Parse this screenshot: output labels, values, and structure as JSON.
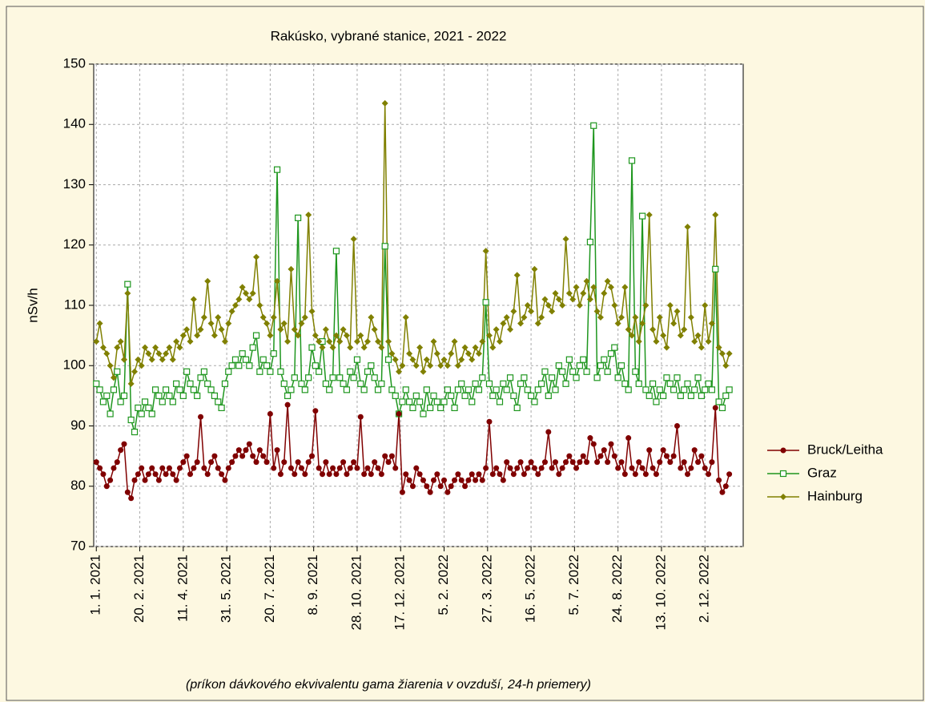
{
  "chart_data": {
    "type": "line",
    "title": "Rakúsko, vybrané stanice, 2021 - 2022",
    "y_label": "nSv/h",
    "note": "(príkon dávkového ekvivalentu gama žiarenia v ovzduší, 24-h priemery)",
    "grid": true,
    "legend": "right",
    "xlim": [
      -3,
      744
    ],
    "xticks": [
      {
        "value": 0,
        "label": "1. 1. 2021"
      },
      {
        "value": 50,
        "label": "20. 2. 2021"
      },
      {
        "value": 100,
        "label": "11. 4. 2021"
      },
      {
        "value": 150,
        "label": "31. 5. 2021"
      },
      {
        "value": 200,
        "label": "20. 7. 2021"
      },
      {
        "value": 250,
        "label": "8. 9. 2021"
      },
      {
        "value": 300,
        "label": "28. 10. 2021"
      },
      {
        "value": 350,
        "label": "17. 12. 2021"
      },
      {
        "value": 400,
        "label": "5. 2. 2022"
      },
      {
        "value": 450,
        "label": "27. 3. 2022"
      },
      {
        "value": 500,
        "label": "16. 5. 2022"
      },
      {
        "value": 550,
        "label": "5. 7. 2022"
      },
      {
        "value": 600,
        "label": "24. 8. 2022"
      },
      {
        "value": 650,
        "label": "13. 10. 2022"
      },
      {
        "value": 700,
        "label": "2. 12. 2022"
      }
    ],
    "ylim": [
      70,
      150
    ],
    "yticks": [
      70,
      80,
      90,
      100,
      110,
      120,
      130,
      140,
      150
    ],
    "x": [
      0,
      4,
      8,
      12,
      16,
      20,
      24,
      28,
      32,
      36,
      40,
      44,
      48,
      52,
      56,
      60,
      64,
      68,
      72,
      76,
      80,
      84,
      88,
      92,
      96,
      100,
      104,
      108,
      112,
      116,
      120,
      124,
      128,
      132,
      136,
      140,
      144,
      148,
      152,
      156,
      160,
      164,
      168,
      172,
      176,
      180,
      184,
      188,
      192,
      196,
      200,
      204,
      208,
      212,
      216,
      220,
      224,
      228,
      232,
      236,
      240,
      244,
      248,
      252,
      256,
      260,
      264,
      268,
      272,
      276,
      280,
      284,
      288,
      292,
      296,
      300,
      304,
      308,
      312,
      316,
      320,
      324,
      328,
      332,
      336,
      340,
      344,
      348,
      352,
      356,
      360,
      364,
      368,
      372,
      376,
      380,
      384,
      388,
      392,
      396,
      400,
      404,
      408,
      412,
      416,
      420,
      424,
      428,
      432,
      436,
      440,
      444,
      448,
      452,
      456,
      460,
      464,
      468,
      472,
      476,
      480,
      484,
      488,
      492,
      496,
      500,
      504,
      508,
      512,
      516,
      520,
      524,
      528,
      532,
      536,
      540,
      544,
      548,
      552,
      556,
      560,
      564,
      568,
      572,
      576,
      580,
      584,
      588,
      592,
      596,
      600,
      604,
      608,
      612,
      616,
      620,
      624,
      628,
      632,
      636,
      640,
      644,
      648,
      652,
      656,
      660,
      664,
      668,
      672,
      676,
      680,
      684,
      688,
      692,
      696,
      700,
      704,
      708,
      712,
      716,
      720,
      724,
      728
    ],
    "series": [
      {
        "name": "Bruck/Leitha",
        "color": "#800000",
        "marker": "circle",
        "values": [
          84,
          83,
          82,
          80,
          81,
          83,
          84,
          86,
          87,
          79,
          78,
          81,
          82,
          83,
          81,
          82,
          83,
          82,
          81,
          83,
          82,
          83,
          82,
          81,
          83,
          84,
          85,
          82,
          83,
          84,
          91.5,
          83,
          82,
          84,
          85,
          83,
          82,
          81,
          83,
          84,
          85,
          86,
          85,
          86,
          87,
          85,
          84,
          86,
          85,
          84,
          92,
          83,
          86,
          82,
          84,
          93.5,
          83,
          82,
          84,
          83,
          82,
          84,
          85,
          92.5,
          83,
          82,
          84,
          82,
          83,
          82,
          83,
          84,
          82,
          83,
          84,
          83,
          91.5,
          82,
          83,
          82,
          84,
          83,
          82,
          85,
          84,
          85,
          83,
          92,
          79,
          82,
          81,
          80,
          83,
          82,
          81,
          80,
          79,
          81,
          82,
          80,
          81,
          79,
          80,
          81,
          82,
          81,
          80,
          81,
          82,
          81,
          82,
          81,
          83,
          90.7,
          82,
          83,
          82,
          81,
          84,
          83,
          82,
          83,
          84,
          82,
          83,
          84,
          83,
          82,
          83,
          84,
          89,
          83,
          84,
          82,
          83,
          84,
          85,
          84,
          83,
          84,
          85,
          84,
          88,
          87,
          84,
          85,
          86,
          84,
          87,
          85,
          83,
          84,
          82,
          88,
          83,
          82,
          84,
          83,
          82,
          86,
          83,
          82,
          84,
          86,
          85,
          84,
          85,
          90,
          83,
          84,
          82,
          83,
          86,
          84,
          85,
          83,
          82,
          84,
          93,
          81,
          79,
          80,
          82
        ]
      },
      {
        "name": "Graz",
        "color": "#1e961e",
        "marker": "square",
        "values": [
          97,
          96,
          94,
          95,
          92,
          96,
          99,
          94,
          95,
          113.5,
          91,
          89,
          93,
          92,
          94,
          93,
          92,
          96,
          95,
          94,
          96,
          95,
          94,
          97,
          96,
          95,
          99,
          97,
          96,
          95,
          98,
          99,
          97,
          96,
          95,
          94,
          93,
          97,
          99,
          100,
          101,
          100,
          102,
          101,
          100,
          103,
          105,
          99,
          101,
          100,
          99,
          102,
          132.5,
          99,
          97,
          95,
          96,
          98,
          124.5,
          97,
          96,
          98,
          103,
          100,
          99,
          104,
          97,
          96,
          98,
          119,
          98,
          97,
          96,
          99,
          98,
          101,
          97,
          96,
          99,
          100,
          98,
          96,
          97,
          119.8,
          101,
          96,
          95,
          92,
          94,
          96,
          94,
          93,
          95,
          94,
          92,
          96,
          93,
          95,
          94,
          93,
          94,
          96,
          95,
          93,
          96,
          97,
          95,
          96,
          94,
          97,
          96,
          98,
          110.5,
          97,
          95,
          96,
          94,
          97,
          96,
          98,
          95,
          93,
          97,
          98,
          96,
          95,
          94,
          96,
          97,
          99,
          95,
          98,
          96,
          100,
          99,
          97,
          101,
          99,
          98,
          100,
          101,
          99,
          120.5,
          139.8,
          98,
          100,
          101,
          99,
          102,
          103,
          98,
          100,
          97,
          96,
          134,
          99,
          97,
          124.8,
          96,
          95,
          97,
          94,
          96,
          95,
          98,
          97,
          96,
          98,
          95,
          96,
          97,
          95,
          96,
          98,
          95,
          96,
          97,
          96,
          116,
          94,
          93,
          95,
          96
        ]
      },
      {
        "name": "Hainburg",
        "color": "#808000",
        "marker": "diamond",
        "values": [
          104,
          107,
          103,
          102,
          100,
          98,
          103,
          104,
          101,
          112,
          97,
          99,
          101,
          100,
          103,
          102,
          101,
          103,
          102,
          101,
          102,
          103,
          101,
          104,
          103,
          105,
          106,
          104,
          111,
          105,
          106,
          108,
          114,
          107,
          105,
          108,
          106,
          104,
          107,
          109,
          110,
          111,
          113,
          112,
          111,
          112,
          118,
          110,
          108,
          107,
          105,
          108,
          114,
          106,
          107,
          104,
          116,
          106,
          105,
          107,
          108,
          125,
          109,
          105,
          104,
          103,
          106,
          104,
          103,
          105,
          104,
          106,
          105,
          103,
          121,
          104,
          105,
          103,
          104,
          108,
          106,
          104,
          103,
          143.5,
          104,
          102,
          101,
          99,
          100,
          108,
          102,
          101,
          100,
          103,
          99,
          101,
          100,
          104,
          102,
          100,
          101,
          100,
          102,
          104,
          100,
          101,
          103,
          102,
          101,
          103,
          102,
          104,
          119,
          105,
          103,
          106,
          104,
          107,
          108,
          106,
          109,
          115,
          107,
          108,
          110,
          109,
          116,
          107,
          108,
          111,
          110,
          109,
          112,
          111,
          110,
          121,
          112,
          111,
          113,
          110,
          112,
          114,
          111,
          113,
          109,
          108,
          112,
          114,
          113,
          110,
          107,
          108,
          113,
          106,
          105,
          108,
          104,
          107,
          110,
          125,
          106,
          104,
          108,
          105,
          103,
          110,
          107,
          109,
          105,
          106,
          123,
          108,
          104,
          105,
          103,
          110,
          104,
          107,
          125,
          103,
          102,
          100,
          102
        ]
      }
    ]
  }
}
